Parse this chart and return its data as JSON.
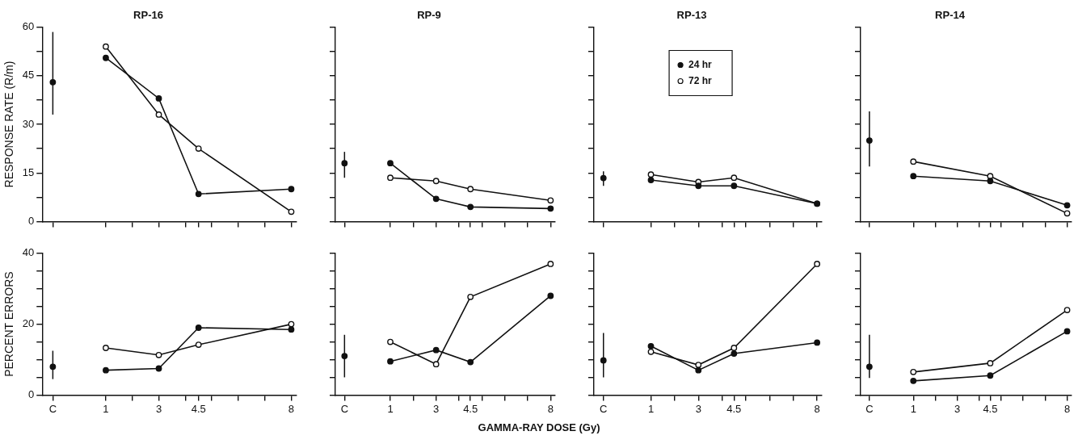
{
  "chart_data": [
    {
      "type": "line",
      "title": "RP-16",
      "ylabel": "RESPONSE RATE (R/m)",
      "xlim": [
        -1.4,
        8.2
      ],
      "ylim": [
        0,
        60
      ],
      "tick_labels": "y",
      "marker": "circle",
      "grid": false,
      "legend": false,
      "xticks": [
        {
          "value": -1,
          "label": null
        },
        {
          "value": 1,
          "label": null
        },
        {
          "value": 2,
          "label": null
        },
        {
          "value": 3,
          "label": null
        },
        {
          "value": 4,
          "label": null
        },
        {
          "value": 4.5,
          "label": null
        },
        {
          "value": 5,
          "label": null
        },
        {
          "value": 6,
          "label": null
        },
        {
          "value": 7,
          "label": null
        },
        {
          "value": 8,
          "label": null
        }
      ],
      "yticks": [
        0,
        {
          "value": 7.5,
          "label": null
        },
        15,
        {
          "value": 22.5,
          "label": null
        },
        30,
        {
          "value": 37.5,
          "label": null
        },
        45,
        {
          "value": 52.5,
          "label": null
        },
        60
      ],
      "series": [
        {
          "type": "scatter",
          "color": "#111111",
          "x": [
            -1
          ],
          "values": [
            43
          ],
          "errors": [
            [
              33,
              58.5
            ]
          ]
        },
        {
          "color": "#111111",
          "x": [
            1,
            3,
            4.5,
            8
          ],
          "values": [
            50.5,
            38,
            8.5,
            10
          ]
        },
        {
          "color": "#111111",
          "x": [
            1,
            3,
            4.5,
            8
          ],
          "values": [
            54,
            33,
            22.5,
            3
          ]
        }
      ]
    },
    {
      "type": "line",
      "title": "RP-9",
      "xlim": [
        -1.4,
        8.2
      ],
      "ylim": [
        0,
        60
      ],
      "tick_labels": false,
      "marker": "circle",
      "grid": false,
      "legend": false,
      "xticks": [
        {
          "value": -1,
          "label": null
        },
        {
          "value": 1,
          "label": null
        },
        {
          "value": 2,
          "label": null
        },
        {
          "value": 3,
          "label": null
        },
        {
          "value": 4,
          "label": null
        },
        {
          "value": 4.5,
          "label": null
        },
        {
          "value": 5,
          "label": null
        },
        {
          "value": 6,
          "label": null
        },
        {
          "value": 7,
          "label": null
        },
        {
          "value": 8,
          "label": null
        }
      ],
      "yticks": [
        0,
        {
          "value": 7.5,
          "label": null
        },
        15,
        {
          "value": 22.5,
          "label": null
        },
        30,
        {
          "value": 37.5,
          "label": null
        },
        45,
        {
          "value": 52.5,
          "label": null
        },
        60
      ],
      "series": [
        {
          "type": "scatter",
          "color": "#111111",
          "x": [
            -1
          ],
          "values": [
            18
          ],
          "errors": [
            [
              13.5,
              21.5
            ]
          ]
        },
        {
          "color": "#111111",
          "x": [
            1,
            3,
            4.5,
            8
          ],
          "values": [
            18,
            7,
            4.5,
            4
          ]
        },
        {
          "color": "#111111",
          "x": [
            1,
            3,
            4.5,
            8
          ],
          "values": [
            13.5,
            12.5,
            10,
            6.5
          ]
        }
      ]
    },
    {
      "type": "line",
      "title": "RP-13",
      "xlim": [
        -1.4,
        8.2
      ],
      "ylim": [
        0,
        60
      ],
      "tick_labels": false,
      "marker": "circle",
      "grid": false,
      "legend": "top left",
      "xticks": [
        {
          "value": -1,
          "label": null
        },
        {
          "value": 1,
          "label": null
        },
        {
          "value": 2,
          "label": null
        },
        {
          "value": 3,
          "label": null
        },
        {
          "value": 4,
          "label": null
        },
        {
          "value": 4.5,
          "label": null
        },
        {
          "value": 5,
          "label": null
        },
        {
          "value": 6,
          "label": null
        },
        {
          "value": 7,
          "label": null
        },
        {
          "value": 8,
          "label": null
        }
      ],
      "yticks": [
        0,
        {
          "value": 7.5,
          "label": null
        },
        15,
        {
          "value": 22.5,
          "label": null
        },
        30,
        {
          "value": 37.5,
          "label": null
        },
        45,
        {
          "value": 52.5,
          "label": null
        },
        60
      ],
      "series": [
        {
          "type": "scatter",
          "color": "#111111",
          "x": [
            -1
          ],
          "values": [
            13.4
          ],
          "errors": [
            [
              11,
              15.5
            ]
          ]
        },
        {
          "name": "24 hr",
          "color": "#111111",
          "x": [
            1,
            3,
            4.5,
            8
          ],
          "values": [
            12.8,
            11,
            11,
            5.5
          ]
        },
        {
          "name": "72 hr",
          "color": "#111111",
          "x": [
            1,
            3,
            4.5,
            8
          ],
          "values": [
            14.5,
            12.2,
            13.5,
            5.5
          ]
        }
      ]
    },
    {
      "type": "line",
      "title": "RP-14",
      "xlim": [
        -1.4,
        8.2
      ],
      "ylim": [
        0,
        60
      ],
      "tick_labels": false,
      "marker": "circle",
      "grid": false,
      "legend": false,
      "xticks": [
        {
          "value": -1,
          "label": null
        },
        {
          "value": 1,
          "label": null
        },
        {
          "value": 2,
          "label": null
        },
        {
          "value": 3,
          "label": null
        },
        {
          "value": 4,
          "label": null
        },
        {
          "value": 4.5,
          "label": null
        },
        {
          "value": 5,
          "label": null
        },
        {
          "value": 6,
          "label": null
        },
        {
          "value": 7,
          "label": null
        },
        {
          "value": 8,
          "label": null
        }
      ],
      "yticks": [
        0,
        {
          "value": 7.5,
          "label": null
        },
        15,
        {
          "value": 22.5,
          "label": null
        },
        30,
        {
          "value": 37.5,
          "label": null
        },
        45,
        {
          "value": 52.5,
          "label": null
        },
        60
      ],
      "series": [
        {
          "type": "scatter",
          "color": "#111111",
          "x": [
            -1
          ],
          "values": [
            25
          ],
          "errors": [
            [
              17,
              34
            ]
          ]
        },
        {
          "color": "#111111",
          "x": [
            1,
            4.5,
            8
          ],
          "values": [
            14,
            12.5,
            5
          ]
        },
        {
          "color": "#111111",
          "x": [
            1,
            4.5,
            8
          ],
          "values": [
            18.5,
            14,
            2.5
          ]
        }
      ]
    },
    {
      "type": "line",
      "ylabel": "PERCENT ERRORS",
      "xlim": [
        -1.4,
        8.2
      ],
      "ylim": [
        0,
        40
      ],
      "marker": "circle",
      "grid": false,
      "legend": false,
      "xticks": [
        {
          "value": -1,
          "label": "C"
        },
        1,
        {
          "value": 2,
          "label": null
        },
        3,
        {
          "value": 4,
          "label": null
        },
        {
          "value": 4.5,
          "label": "4.5"
        },
        {
          "value": 5,
          "label": null
        },
        {
          "value": 6,
          "label": null
        },
        {
          "value": 7,
          "label": null
        },
        8
      ],
      "yticks": [
        0,
        {
          "value": 5,
          "label": null
        },
        {
          "value": 10,
          "label": null
        },
        {
          "value": 15,
          "label": null
        },
        20,
        {
          "value": 25,
          "label": null
        },
        {
          "value": 30,
          "label": null
        },
        {
          "value": 35,
          "label": null
        },
        40
      ],
      "series": [
        {
          "type": "scatter",
          "color": "#111111",
          "x": [
            -1
          ],
          "values": [
            8
          ],
          "errors": [
            [
              4.5,
              12.5
            ]
          ]
        },
        {
          "color": "#111111",
          "x": [
            1,
            3,
            4.5,
            8
          ],
          "values": [
            7,
            7.5,
            19,
            18.5
          ]
        },
        {
          "color": "#111111",
          "x": [
            1,
            3,
            4.5,
            8
          ],
          "values": [
            13.3,
            11.3,
            14.2,
            20
          ]
        }
      ]
    },
    {
      "type": "line",
      "xlabel": "GAMMA-RAY DOSE (Gy)",
      "xlim": [
        -1.4,
        8.2
      ],
      "ylim": [
        0,
        40
      ],
      "tick_labels": "x",
      "marker": "circle",
      "grid": false,
      "legend": false,
      "xticks": [
        {
          "value": -1,
          "label": "C"
        },
        1,
        {
          "value": 2,
          "label": null
        },
        3,
        {
          "value": 4,
          "label": null
        },
        {
          "value": 4.5,
          "label": "4.5"
        },
        {
          "value": 5,
          "label": null
        },
        {
          "value": 6,
          "label": null
        },
        {
          "value": 7,
          "label": null
        },
        8
      ],
      "yticks": [
        0,
        {
          "value": 5,
          "label": null
        },
        {
          "value": 10,
          "label": null
        },
        {
          "value": 15,
          "label": null
        },
        20,
        {
          "value": 25,
          "label": null
        },
        {
          "value": 30,
          "label": null
        },
        {
          "value": 35,
          "label": null
        },
        40
      ],
      "series": [
        {
          "type": "scatter",
          "color": "#111111",
          "x": [
            -1
          ],
          "values": [
            11
          ],
          "errors": [
            [
              5,
              17
            ]
          ]
        },
        {
          "color": "#111111",
          "x": [
            1,
            3,
            4.5,
            8
          ],
          "values": [
            9.5,
            12.7,
            9.3,
            28
          ]
        },
        {
          "color": "#111111",
          "x": [
            1,
            3,
            4.5,
            8
          ],
          "values": [
            15,
            8.7,
            27.7,
            37
          ]
        }
      ]
    },
    {
      "type": "line",
      "xlim": [
        -1.4,
        8.2
      ],
      "ylim": [
        0,
        40
      ],
      "tick_labels": "x",
      "marker": "circle",
      "grid": false,
      "legend": false,
      "xticks": [
        {
          "value": -1,
          "label": "C"
        },
        1,
        {
          "value": 2,
          "label": null
        },
        3,
        {
          "value": 4,
          "label": null
        },
        {
          "value": 4.5,
          "label": "4.5"
        },
        {
          "value": 5,
          "label": null
        },
        {
          "value": 6,
          "label": null
        },
        {
          "value": 7,
          "label": null
        },
        8
      ],
      "yticks": [
        0,
        {
          "value": 5,
          "label": null
        },
        {
          "value": 10,
          "label": null
        },
        {
          "value": 15,
          "label": null
        },
        20,
        {
          "value": 25,
          "label": null
        },
        {
          "value": 30,
          "label": null
        },
        {
          "value": 35,
          "label": null
        },
        40
      ],
      "series": [
        {
          "type": "scatter",
          "color": "#111111",
          "x": [
            -1
          ],
          "values": [
            9.8
          ],
          "errors": [
            [
              5,
              17.5
            ]
          ]
        },
        {
          "color": "#111111",
          "x": [
            1,
            3,
            4.5,
            8
          ],
          "values": [
            13.8,
            7,
            11.7,
            14.8
          ]
        },
        {
          "color": "#111111",
          "x": [
            1,
            3,
            4.5,
            8
          ],
          "values": [
            12.2,
            8.5,
            13.3,
            37
          ]
        }
      ]
    },
    {
      "type": "line",
      "xlim": [
        -1.4,
        8.2
      ],
      "ylim": [
        0,
        40
      ],
      "tick_labels": "x",
      "marker": "circle",
      "grid": false,
      "legend": false,
      "xticks": [
        {
          "value": -1,
          "label": "C"
        },
        1,
        {
          "value": 2,
          "label": null
        },
        3,
        {
          "value": 4,
          "label": null
        },
        {
          "value": 4.5,
          "label": "4.5"
        },
        {
          "value": 5,
          "label": null
        },
        {
          "value": 6,
          "label": null
        },
        {
          "value": 7,
          "label": null
        },
        8
      ],
      "yticks": [
        0,
        {
          "value": 5,
          "label": null
        },
        {
          "value": 10,
          "label": null
        },
        {
          "value": 15,
          "label": null
        },
        20,
        {
          "value": 25,
          "label": null
        },
        {
          "value": 30,
          "label": null
        },
        {
          "value": 35,
          "label": null
        },
        40
      ],
      "series": [
        {
          "type": "scatter",
          "color": "#111111",
          "x": [
            -1
          ],
          "values": [
            8
          ],
          "errors": [
            [
              4.8,
              17
            ]
          ]
        },
        {
          "color": "#111111",
          "x": [
            1,
            4.5,
            8
          ],
          "values": [
            4,
            5.5,
            18
          ]
        },
        {
          "color": "#111111",
          "x": [
            1,
            4.5,
            8
          ],
          "values": [
            6.5,
            9,
            24
          ]
        }
      ]
    }
  ]
}
